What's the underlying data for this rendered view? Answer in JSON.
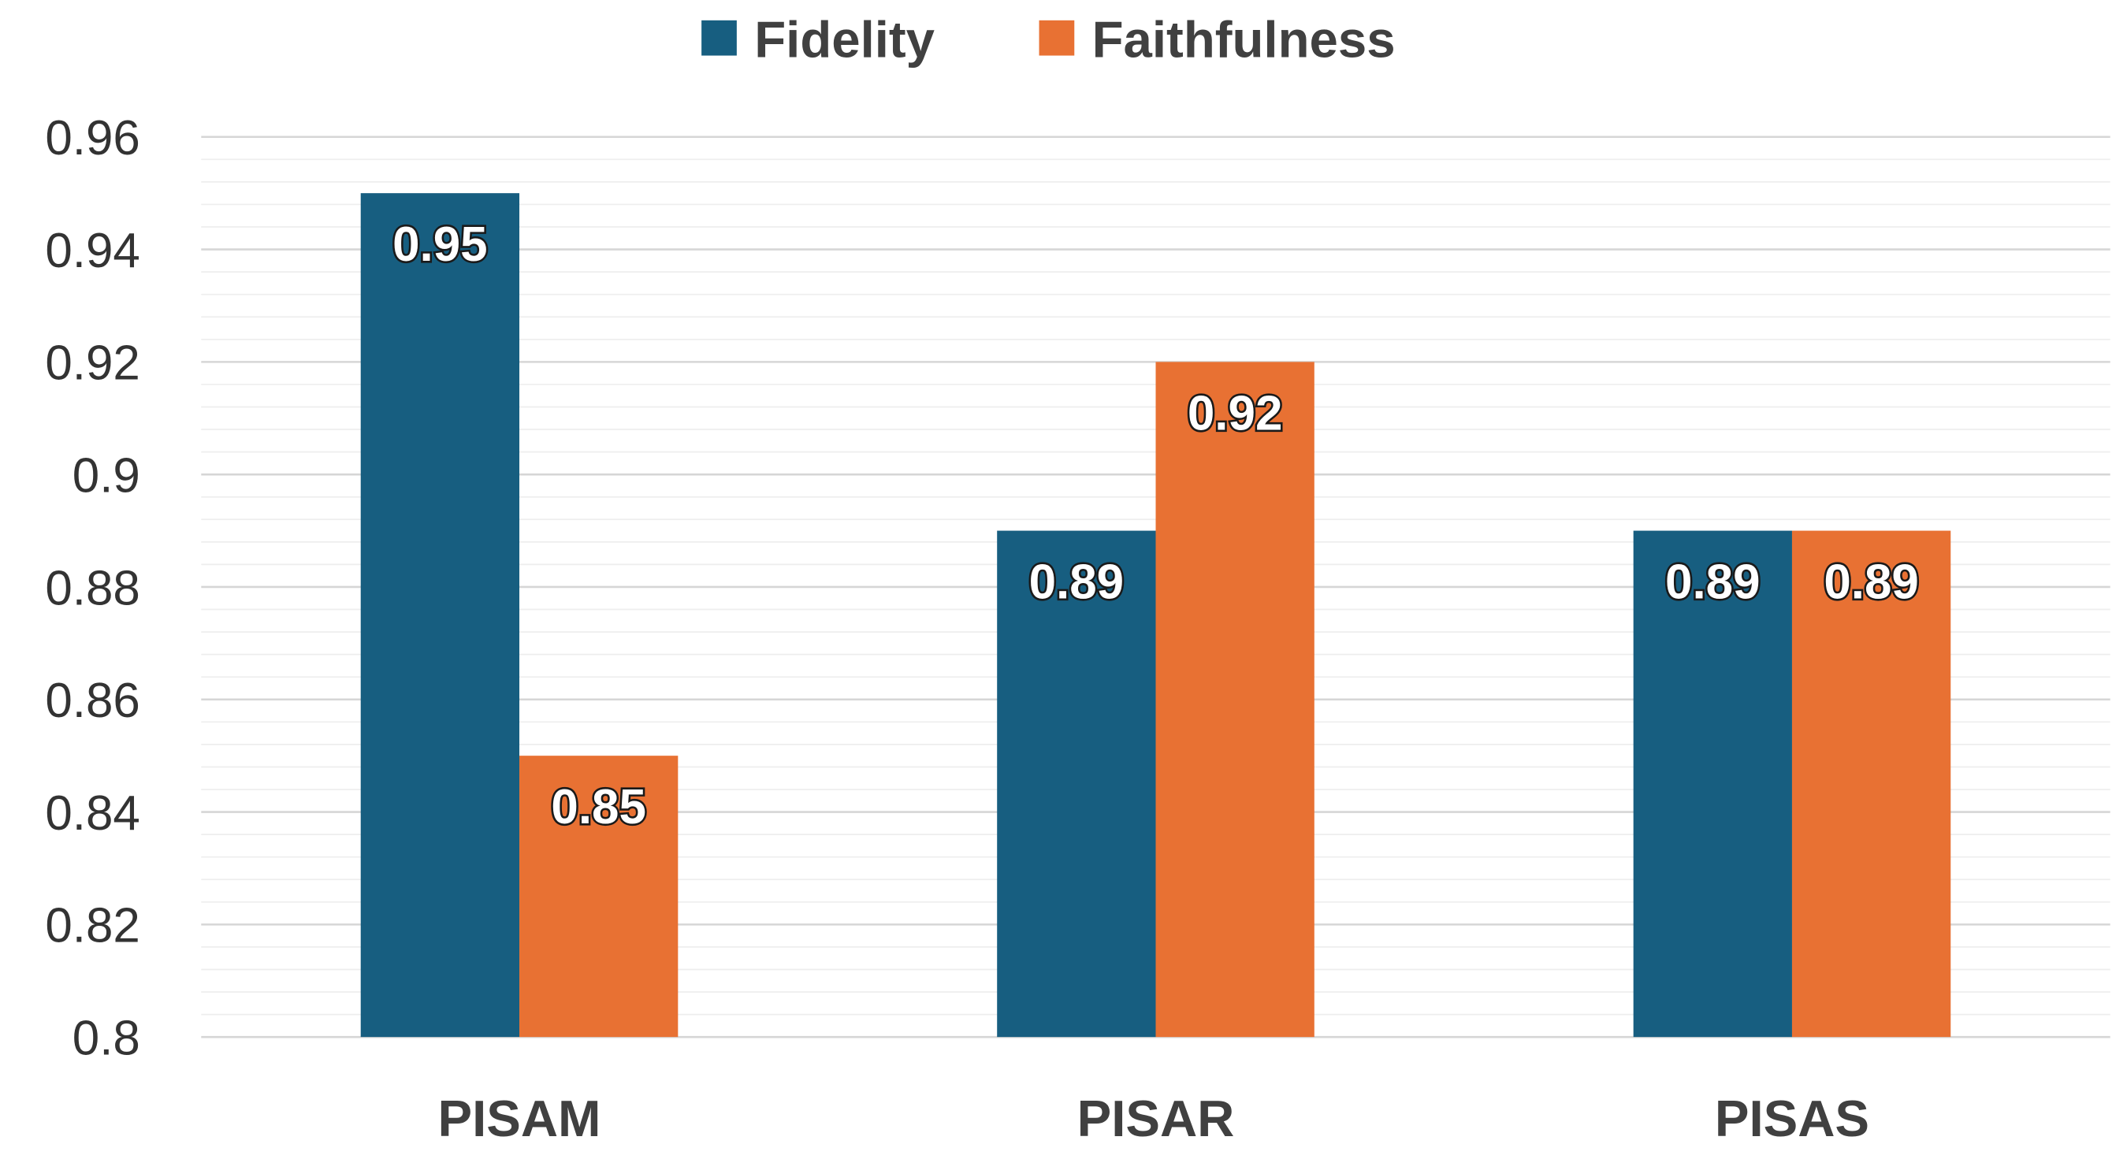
{
  "chart_data": {
    "type": "bar",
    "title": "",
    "xlabel": "",
    "ylabel": "",
    "categories": [
      "PISAM",
      "PISAR",
      "PISAS"
    ],
    "series": [
      {
        "name": "Fidelity",
        "color": "#175E80",
        "values": [
          0.95,
          0.89,
          0.89
        ],
        "labels": [
          "0.95",
          "0.89",
          "0.89"
        ]
      },
      {
        "name": "Faithfulness",
        "color": "#E87133",
        "values": [
          0.85,
          0.92,
          0.89
        ],
        "labels": [
          "0.85",
          "0.92",
          "0.89"
        ]
      }
    ],
    "ylim": [
      0.8,
      0.96
    ],
    "yticks": [
      0.8,
      0.82,
      0.84,
      0.86,
      0.88,
      0.9,
      0.92,
      0.94,
      0.96
    ],
    "ytick_labels": [
      "0.8",
      "0.82",
      "0.84",
      "0.86",
      "0.88",
      "0.9",
      "0.92",
      "0.94",
      "0.96"
    ],
    "minor_grid_step": 0.004,
    "grid": true,
    "legend_position": "top-center"
  }
}
